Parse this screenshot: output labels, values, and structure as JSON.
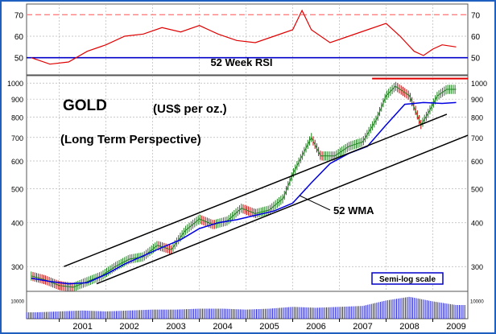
{
  "colors": {
    "frame": "#1f5fbf",
    "rsi_line": "#e00000",
    "rsi_ref_dashed": "#ff8080",
    "rsi_ref_solid": "#0000c8",
    "price_bars": "#208020",
    "price_bars_down": "#c00000",
    "wma": "#0000e0",
    "channel": "#000000",
    "resistance": "#e00000",
    "volume": "#2020d0",
    "grid": "#b8b8b8"
  },
  "chart_data": [
    {
      "type": "line",
      "panel": "rsi",
      "title": "52 Week RSI",
      "ylim": [
        42,
        75
      ],
      "yticks": [
        50,
        60,
        70
      ],
      "reference_lines": [
        {
          "value": 70,
          "style": "dashed",
          "color": "#ff8080"
        },
        {
          "value": 50,
          "style": "solid",
          "color": "#0000c8"
        }
      ],
      "series": [
        {
          "x": [
            2000.4,
            2000.8,
            2001.2,
            2001.6,
            2002.0,
            2002.4,
            2002.8,
            2003.2,
            2003.6,
            2004.0,
            2004.4,
            2004.8,
            2005.2,
            2005.6,
            2006.0,
            2006.2,
            2006.4,
            2006.8,
            2007.2,
            2007.6,
            2008.0,
            2008.3,
            2008.6,
            2008.8,
            2009.0,
            2009.2,
            2009.5
          ],
          "values": [
            50,
            47,
            48,
            53,
            56,
            60,
            61,
            64,
            62,
            65,
            61,
            58,
            57,
            60,
            63,
            72,
            63,
            57,
            60,
            63,
            66,
            60,
            53,
            51,
            54,
            56,
            55
          ]
        }
      ]
    },
    {
      "type": "line",
      "panel": "price",
      "title": "GOLD",
      "subtitle": "(US$  per oz.)",
      "annotation": "(Long Term Perspective)",
      "scale": "log",
      "scale_label": "Semi-log scale",
      "ylim": [
        255,
        1050
      ],
      "yticks": [
        300,
        400,
        500,
        600,
        700,
        800,
        900,
        1000
      ],
      "xlim": [
        2000.3,
        2009.75
      ],
      "xticks": [
        "2001",
        "2002",
        "2003",
        "2004",
        "2005",
        "2006",
        "2007",
        "2008",
        "2009"
      ],
      "grid": true,
      "series": [
        {
          "name": "52 WMA",
          "x": [
            2000.4,
            2000.8,
            2001.2,
            2001.6,
            2002.0,
            2002.4,
            2002.8,
            2003.2,
            2003.6,
            2004.0,
            2004.4,
            2004.8,
            2005.2,
            2005.6,
            2006.0,
            2006.4,
            2006.8,
            2007.2,
            2007.6,
            2008.0,
            2008.4,
            2008.8,
            2009.2,
            2009.5
          ],
          "values": [
            278,
            272,
            268,
            270,
            285,
            305,
            322,
            340,
            358,
            385,
            400,
            408,
            420,
            432,
            455,
            520,
            590,
            630,
            660,
            760,
            870,
            880,
            875,
            880
          ]
        },
        {
          "name": "Gold price",
          "x": [
            2000.4,
            2000.7,
            2001.0,
            2001.3,
            2001.6,
            2001.9,
            2002.2,
            2002.5,
            2002.8,
            2003.1,
            2003.4,
            2003.7,
            2004.0,
            2004.3,
            2004.6,
            2004.9,
            2005.2,
            2005.5,
            2005.8,
            2006.0,
            2006.2,
            2006.4,
            2006.6,
            2006.9,
            2007.2,
            2007.5,
            2007.8,
            2008.0,
            2008.2,
            2008.5,
            2008.75,
            2008.9,
            2009.1,
            2009.3,
            2009.5
          ],
          "values": [
            282,
            275,
            265,
            262,
            272,
            282,
            300,
            315,
            320,
            345,
            335,
            380,
            410,
            395,
            405,
            440,
            425,
            435,
            470,
            550,
            620,
            700,
            620,
            620,
            660,
            680,
            790,
            920,
            980,
            920,
            760,
            820,
            920,
            960,
            960
          ]
        }
      ],
      "lines": [
        {
          "name": "channel upper",
          "x": [
            2001.1,
            2009.3
          ],
          "values": [
            300,
            815
          ]
        },
        {
          "name": "channel lower",
          "x": [
            2001.8,
            2009.75
          ],
          "values": [
            268,
            710
          ]
        },
        {
          "name": "resistance",
          "x": [
            2007.7,
            2009.75
          ],
          "values": [
            1030,
            1030
          ]
        }
      ]
    },
    {
      "type": "bar",
      "panel": "volume",
      "ylim": [
        0,
        15000
      ],
      "yticks": [
        10000
      ],
      "ytick_labels": [
        "10000"
      ],
      "x": [
        2000.5,
        2001.0,
        2001.5,
        2002.0,
        2002.5,
        2003.0,
        2003.5,
        2004.0,
        2004.5,
        2005.0,
        2005.5,
        2006.0,
        2006.5,
        2007.0,
        2007.5,
        2008.0,
        2008.5,
        2009.0,
        2009.5
      ],
      "values": [
        3500,
        4000,
        4500,
        4000,
        4500,
        5000,
        5000,
        5500,
        5500,
        5000,
        5500,
        6500,
        6000,
        6500,
        7000,
        10000,
        12000,
        9500,
        7500
      ]
    }
  ]
}
